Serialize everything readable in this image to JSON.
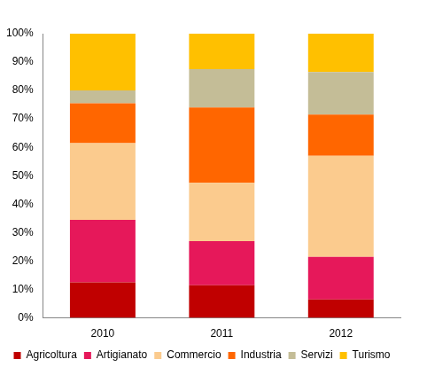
{
  "chart_data": {
    "type": "bar",
    "stacked": true,
    "grid": false,
    "legend": "bottom",
    "categories": [
      "2010",
      "2011",
      "2012"
    ],
    "series": [
      {
        "name": "Agricoltura",
        "color": "#c00000",
        "values": [
          12.5,
          11.5,
          6.5
        ]
      },
      {
        "name": "Artigianato",
        "color": "#e6185a",
        "values": [
          22,
          15.5,
          15
        ]
      },
      {
        "name": "Commercio",
        "color": "#fbcb8e",
        "values": [
          27,
          20.5,
          35.5
        ]
      },
      {
        "name": "Industria",
        "color": "#ff6600",
        "values": [
          14,
          26.5,
          14.5
        ]
      },
      {
        "name": "Servizi",
        "color": "#c4bd97",
        "values": [
          4.5,
          13.5,
          15
        ]
      },
      {
        "name": "Turismo",
        "color": "#ffc000",
        "values": [
          20,
          12.5,
          13.5
        ]
      }
    ],
    "ylim": [
      0,
      100
    ],
    "yticks": [
      {
        "value": 0,
        "label": "0%"
      },
      {
        "value": 10,
        "label": "10%"
      },
      {
        "value": 20,
        "label": "20%"
      },
      {
        "value": 30,
        "label": "30%"
      },
      {
        "value": 40,
        "label": "40%"
      },
      {
        "value": 50,
        "label": "50%"
      },
      {
        "value": 60,
        "label": "60%"
      },
      {
        "value": 70,
        "label": "70%"
      },
      {
        "value": 80,
        "label": "80%"
      },
      {
        "value": 90,
        "label": "90%"
      },
      {
        "value": 100,
        "label": "100%"
      }
    ]
  }
}
